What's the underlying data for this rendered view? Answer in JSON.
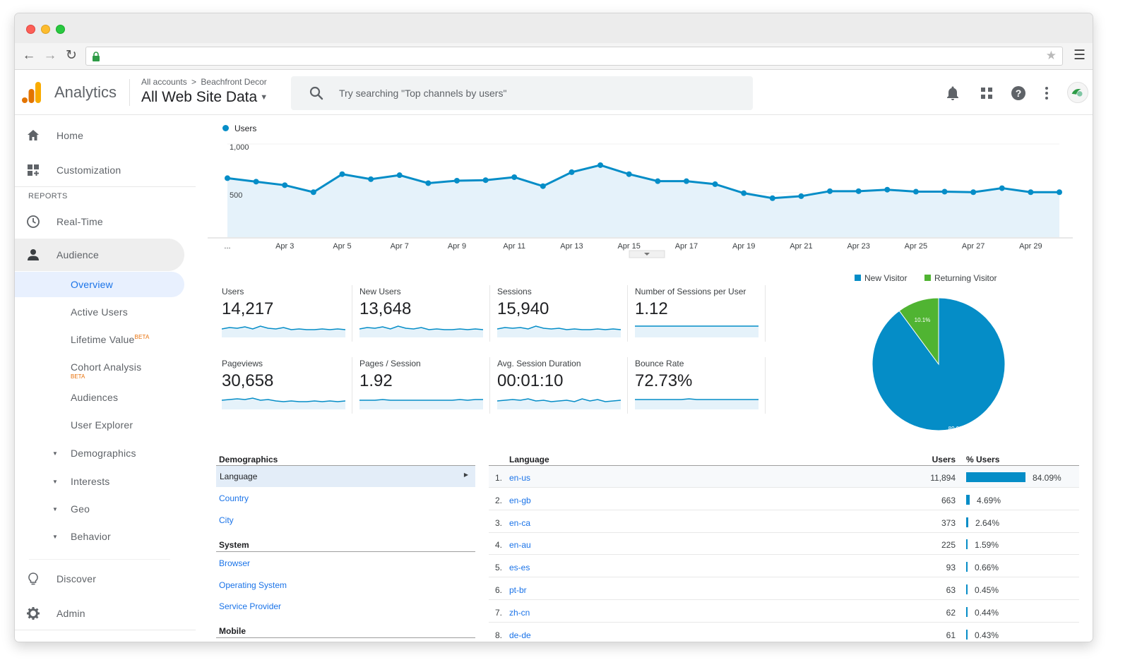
{
  "header": {
    "app_name": "Analytics",
    "breadcrumb": {
      "root": "All accounts",
      "separator": ">",
      "account": "Beachfront Decor"
    },
    "property": "All Web Site Data",
    "search_placeholder": "Try searching \"Top channels by users\""
  },
  "sidebar": {
    "top_items": [
      {
        "label": "Home",
        "icon": "home-icon"
      },
      {
        "label": "Customization",
        "icon": "customization-icon"
      }
    ],
    "reports_label": "REPORTS",
    "report_items": [
      {
        "label": "Real-Time",
        "icon": "clock-icon"
      },
      {
        "label": "Audience",
        "icon": "person-icon",
        "active": true
      }
    ],
    "audience_sub": [
      {
        "label": "Overview",
        "selected": true
      },
      {
        "label": "Active Users"
      },
      {
        "label": "Lifetime Value",
        "badge": "BETA"
      },
      {
        "label": "Cohort Analysis",
        "badge": "BETA"
      },
      {
        "label": "Audiences"
      },
      {
        "label": "User Explorer"
      },
      {
        "label": "Demographics",
        "expandable": true
      },
      {
        "label": "Interests",
        "expandable": true
      },
      {
        "label": "Geo",
        "expandable": true
      },
      {
        "label": "Behavior",
        "expandable": true
      }
    ],
    "bottom_items": [
      {
        "label": "Discover",
        "icon": "lightbulb-icon"
      },
      {
        "label": "Admin",
        "icon": "gear-icon"
      }
    ]
  },
  "chart_data": [
    {
      "type": "area",
      "series": [
        {
          "name": "Users",
          "color": "#058dc7",
          "values": [
            590,
            555,
            520,
            450,
            630,
            580,
            620,
            540,
            565,
            570,
            600,
            510,
            650,
            720,
            630,
            560,
            560,
            530,
            440,
            390,
            410,
            460,
            460,
            475,
            455,
            455,
            450,
            490,
            450,
            450
          ]
        }
      ],
      "x": [
        "Apr 1",
        "Apr 2",
        "Apr 3",
        "Apr 4",
        "Apr 5",
        "Apr 6",
        "Apr 7",
        "Apr 8",
        "Apr 9",
        "Apr 10",
        "Apr 11",
        "Apr 12",
        "Apr 13",
        "Apr 14",
        "Apr 15",
        "Apr 16",
        "Apr 17",
        "Apr 18",
        "Apr 19",
        "Apr 20",
        "Apr 21",
        "Apr 22",
        "Apr 23",
        "Apr 24",
        "Apr 25",
        "Apr 26",
        "Apr 27",
        "Apr 28",
        "Apr 29",
        "Apr 30"
      ],
      "x_tick_labels": [
        "...",
        "Apr 3",
        "Apr 5",
        "Apr 7",
        "Apr 9",
        "Apr 11",
        "Apr 13",
        "Apr 15",
        "Apr 17",
        "Apr 19",
        "Apr 21",
        "Apr 23",
        "Apr 25",
        "Apr 27",
        "Apr 29"
      ],
      "y_ticks": [
        "1,000",
        "500"
      ],
      "ylim": [
        0,
        1000
      ]
    },
    {
      "type": "pie",
      "labels": [
        "New Visitor",
        "Returning Visitor"
      ],
      "values": [
        89.9,
        10.1
      ],
      "slice_labels": [
        "89.9%",
        "10.1%"
      ],
      "colors": [
        "#058dc7",
        "#50b432"
      ],
      "legend_position": "top"
    }
  ],
  "metrics": [
    {
      "label": "Users",
      "value": "14,217"
    },
    {
      "label": "New Users",
      "value": "13,648"
    },
    {
      "label": "Sessions",
      "value": "15,940"
    },
    {
      "label": "Number of Sessions per User",
      "value": "1.12"
    },
    {
      "label": "Pageviews",
      "value": "30,658"
    },
    {
      "label": "Pages / Session",
      "value": "1.92"
    },
    {
      "label": "Avg. Session Duration",
      "value": "00:01:10"
    },
    {
      "label": "Bounce Rate",
      "value": "72.73%"
    }
  ],
  "demographics": {
    "heading": "Demographics",
    "selected": "Language",
    "links": [
      "Country",
      "City"
    ],
    "system_heading": "System",
    "system_links": [
      "Browser",
      "Operating System",
      "Service Provider"
    ],
    "mobile_heading": "Mobile"
  },
  "language_table": {
    "headers": {
      "language": "Language",
      "users": "Users",
      "pct": "% Users"
    },
    "rows": [
      {
        "idx": "1.",
        "code": "en-us",
        "users": "11,894",
        "pct": "84.09%",
        "share": 84.09
      },
      {
        "idx": "2.",
        "code": "en-gb",
        "users": "663",
        "pct": "4.69%",
        "share": 4.69
      },
      {
        "idx": "3.",
        "code": "en-ca",
        "users": "373",
        "pct": "2.64%",
        "share": 2.64
      },
      {
        "idx": "4.",
        "code": "en-au",
        "users": "225",
        "pct": "1.59%",
        "share": 1.59
      },
      {
        "idx": "5.",
        "code": "es-es",
        "users": "93",
        "pct": "0.66%",
        "share": 0.66
      },
      {
        "idx": "6.",
        "code": "pt-br",
        "users": "63",
        "pct": "0.45%",
        "share": 0.45
      },
      {
        "idx": "7.",
        "code": "zh-cn",
        "users": "62",
        "pct": "0.44%",
        "share": 0.44
      },
      {
        "idx": "8.",
        "code": "de-de",
        "users": "61",
        "pct": "0.43%",
        "share": 0.43
      }
    ]
  }
}
